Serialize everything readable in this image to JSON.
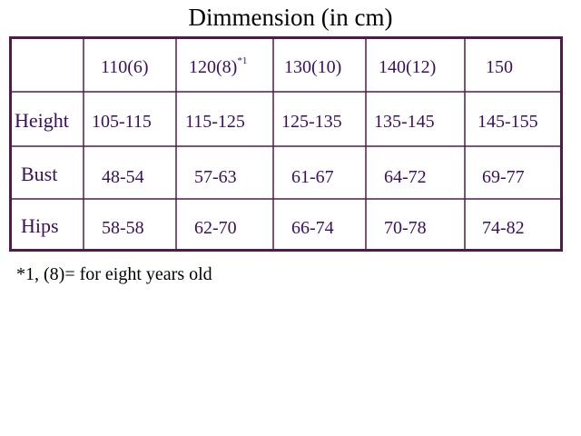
{
  "title": "Dimmension (in cm)",
  "header": {
    "sizes": [
      "110(6)",
      "120(8)",
      "130(10)",
      "140(12)",
      "150"
    ],
    "note_mark": "*1"
  },
  "rows": [
    {
      "label": "Height",
      "values": [
        "105-115",
        "115-125",
        "125-135",
        "135-145",
        "145-155"
      ]
    },
    {
      "label": "Bust",
      "values": [
        "48-54",
        "57-63",
        "61-67",
        "64-72",
        "69-77"
      ]
    },
    {
      "label": "Hips",
      "values": [
        "58-58",
        "62-70",
        "66-74",
        "70-78",
        "74-82"
      ]
    }
  ],
  "footnote": "*1,  (8)= for eight years old",
  "colors": {
    "border": "#4f1b4d",
    "cell_text": "#3a0f5c"
  }
}
